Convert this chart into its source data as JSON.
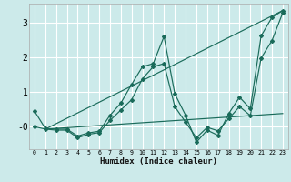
{
  "xlabel": "Humidex (Indice chaleur)",
  "background_color": "#cceaea",
  "grid_color": "#ffffff",
  "line_color": "#1a6b5a",
  "xlim": [
    -0.5,
    23.5
  ],
  "ylim": [
    -0.65,
    3.55
  ],
  "yticks": [
    0,
    1,
    2,
    3
  ],
  "ytick_labels": [
    "-0",
    "1",
    "2",
    "3"
  ],
  "xticks": [
    0,
    1,
    2,
    3,
    4,
    5,
    6,
    7,
    8,
    9,
    10,
    11,
    12,
    13,
    14,
    15,
    16,
    17,
    18,
    19,
    20,
    21,
    22,
    23
  ],
  "series_zigzag1": {
    "x": [
      0,
      1,
      2,
      3,
      4,
      5,
      6,
      7,
      8,
      9,
      10,
      11,
      12,
      13,
      14,
      15,
      16,
      17,
      18,
      19,
      20,
      21,
      22,
      23
    ],
    "y": [
      0.45,
      -0.05,
      -0.07,
      -0.07,
      -0.27,
      -0.18,
      -0.13,
      0.33,
      0.68,
      1.22,
      1.73,
      1.82,
      2.6,
      0.95,
      0.33,
      -0.45,
      -0.1,
      -0.25,
      0.38,
      0.85,
      0.52,
      2.62,
      3.15,
      3.35
    ]
  },
  "series_zigzag2": {
    "x": [
      0,
      1,
      2,
      3,
      4,
      5,
      6,
      7,
      8,
      9,
      10,
      11,
      12,
      13,
      14,
      15,
      16,
      17,
      18,
      19,
      20,
      21,
      22,
      23
    ],
    "y": [
      0.0,
      -0.07,
      -0.1,
      -0.1,
      -0.32,
      -0.22,
      -0.17,
      0.18,
      0.48,
      0.78,
      1.38,
      1.73,
      1.82,
      0.58,
      0.13,
      -0.32,
      -0.02,
      -0.12,
      0.23,
      0.58,
      0.32,
      1.98,
      2.48,
      3.28
    ]
  },
  "series_line_steep": {
    "x": [
      1,
      23
    ],
    "y": [
      -0.07,
      3.35
    ]
  },
  "series_line_flat": {
    "x": [
      1,
      23
    ],
    "y": [
      -0.07,
      0.38
    ]
  }
}
